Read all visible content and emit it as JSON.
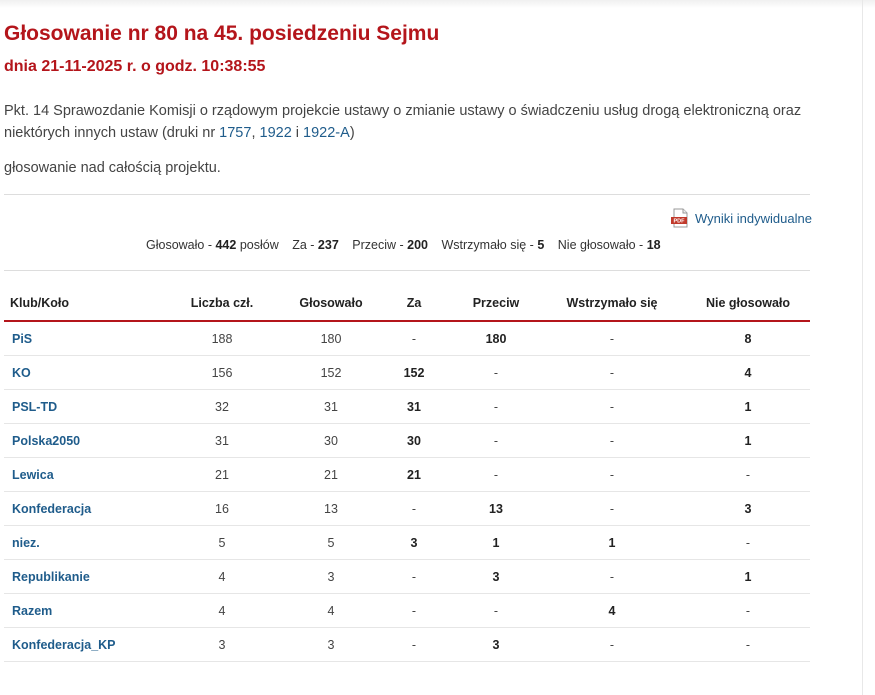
{
  "header": {
    "title": "Głosowanie nr 80 na 45. posiedzeniu Sejmu",
    "subtitle": "dnia 21-11-2025 r. o godz. 10:38:55"
  },
  "description": {
    "prefix": "Pkt. 14 Sprawozdanie Komisji o rządowym projekcie ustawy o zmianie ustawy o świadczeniu usług drogą elektroniczną oraz niektórych innych ustaw (druki nr ",
    "print1": "1757",
    "sep1": ", ",
    "print2": "1922",
    "sep2": " i ",
    "print3": "1922-A",
    "suffix": ")",
    "subject": "głosowanie nad całością projektu."
  },
  "individual_results": {
    "label": "Wyniki indywidualne",
    "icon": "pdf-icon",
    "icon_text": "PDF"
  },
  "summary": {
    "voted_label": "Głosowało - ",
    "voted_value": "442",
    "voted_unit": " posłów",
    "for_label": "Za - ",
    "for_value": "237",
    "against_label": "Przeciw - ",
    "against_value": "200",
    "abstain_label": "Wstrzymało się - ",
    "abstain_value": "5",
    "notvoted_label": "Nie głosowało - ",
    "notvoted_value": "18"
  },
  "table": {
    "headers": [
      "Klub/Koło",
      "Liczba czł.",
      "Głosowało",
      "Za",
      "Przeciw",
      "Wstrzymało się",
      "Nie głosowało"
    ],
    "rows": [
      [
        "PiS",
        "188",
        "180",
        "-",
        "180",
        "-",
        "8"
      ],
      [
        "KO",
        "156",
        "152",
        "152",
        "-",
        "-",
        "4"
      ],
      [
        "PSL-TD",
        "32",
        "31",
        "31",
        "-",
        "-",
        "1"
      ],
      [
        "Polska2050",
        "31",
        "30",
        "30",
        "-",
        "-",
        "1"
      ],
      [
        "Lewica",
        "21",
        "21",
        "21",
        "-",
        "-",
        "-"
      ],
      [
        "Konfederacja",
        "16",
        "13",
        "-",
        "13",
        "-",
        "3"
      ],
      [
        "niez.",
        "5",
        "5",
        "3",
        "1",
        "1",
        "-"
      ],
      [
        "Republikanie",
        "4",
        "3",
        "-",
        "3",
        "-",
        "1"
      ],
      [
        "Razem",
        "4",
        "4",
        "-",
        "-",
        "4",
        "-"
      ],
      [
        "Konfederacja_KP",
        "3",
        "3",
        "-",
        "3",
        "-",
        "-"
      ]
    ]
  },
  "colors": {
    "accent": "#b4151b",
    "link": "#1f5c8b",
    "text": "#444444"
  }
}
